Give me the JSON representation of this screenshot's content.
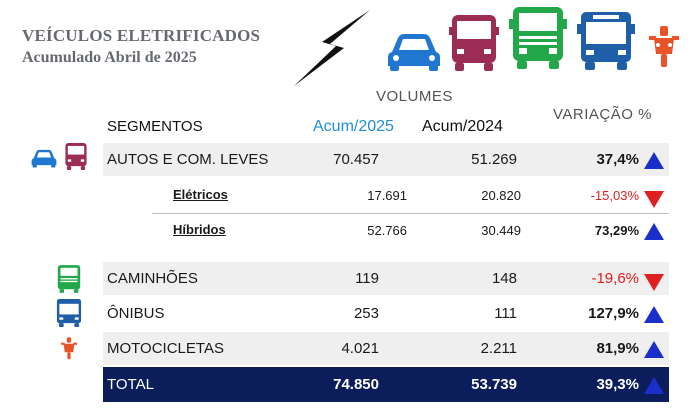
{
  "header": {
    "title": "VEÍCULOS ELETRIFICADOS",
    "subtitle": "Acumulado Abril de 2025"
  },
  "icons": [
    "lightning-bolt",
    "car",
    "van",
    "truck",
    "bus",
    "motorcycle"
  ],
  "colors": {
    "car": "#1f77d0",
    "van": "#9b2d55",
    "truck": "#22a84a",
    "bus": "#1f5fa8",
    "moto": "#e8542a",
    "total_bg": "#0b1e5b",
    "up_arrow": "#1a2ec9",
    "down_arrow": "#e02020",
    "acum2025": "#1f8fd8"
  },
  "table": {
    "volumes_label": "VOLUMES",
    "segments_label": "SEGMENTOS",
    "col_2025": "Acum/2025",
    "col_2024": "Acum/2024",
    "variation_label": "VARIAÇÃO %",
    "rows": [
      {
        "label": "AUTOS E COM. LEVES",
        "v2025": "70.457",
        "v2024": "51.269",
        "var": "37,4%",
        "dir": "up"
      },
      {
        "label": "Elétricos",
        "v2025": "17.691",
        "v2024": "20.820",
        "var": "-15,03%",
        "dir": "down"
      },
      {
        "label": "Híbridos",
        "v2025": "52.766",
        "v2024": "30.449",
        "var": "73,29%",
        "dir": "up"
      },
      {
        "label": "CAMINHÕES",
        "v2025": "119",
        "v2024": "148",
        "var": "-19,6%",
        "dir": "down"
      },
      {
        "label": "ÔNIBUS",
        "v2025": "253",
        "v2024": "111",
        "var": "127,9%",
        "dir": "up"
      },
      {
        "label": "MOTOCICLETAS",
        "v2025": "4.021",
        "v2024": "2.211",
        "var": "81,9%",
        "dir": "up"
      }
    ],
    "total": {
      "label": "TOTAL",
      "v2025": "74.850",
      "v2024": "53.739",
      "var": "39,3%",
      "dir": "up"
    }
  }
}
